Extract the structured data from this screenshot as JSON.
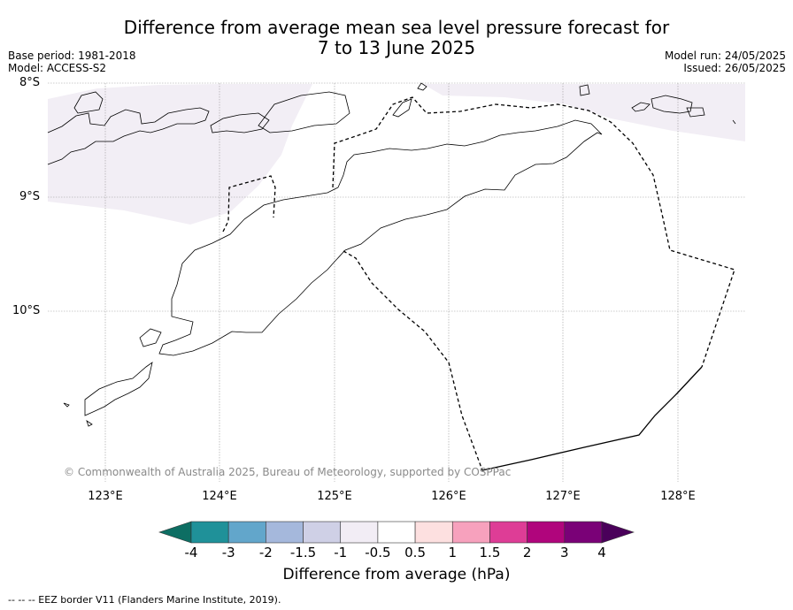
{
  "title_line1": "Difference from average mean sea level pressure forecast for",
  "title_line2": "7 to 13 June 2025",
  "base_period": "Base period: 1981-2018",
  "model": "Model: ACCESS-S2",
  "model_run": "Model run: 24/05/2025",
  "issued": "Issued: 26/05/2025",
  "lat_labels": [
    "8°S",
    "9°S",
    "10°S"
  ],
  "lon_labels": [
    "123°E",
    "124°E",
    "125°E",
    "126°E",
    "127°E",
    "128°E"
  ],
  "copyright": "© Commonwealth of Australia 2025, Bureau of Meteorology, supported by COSPPac",
  "colorbar": {
    "label": "Difference from average (hPa)",
    "ticks": [
      "-4",
      "-3",
      "-2",
      "-1.5",
      "-1",
      "-0.5",
      "0.5",
      "1",
      "1.5",
      "2",
      "3",
      "4"
    ],
    "colors": [
      "#0d6e63",
      "#1f9199",
      "#62a6cb",
      "#a5b8dc",
      "#cfd0e6",
      "#f2edf5",
      "#ffffff",
      "#fde0e0",
      "#f7a1bd",
      "#de3d96",
      "#b0057c",
      "#7a0177",
      "#4a005a"
    ]
  },
  "footnote": "--  --  -- EEZ border V11 (Flanders Marine Institute, 2019).",
  "colors": {
    "land_outline": "#000000",
    "shading": "#f2eef5",
    "grid": "#9a9a9a"
  }
}
